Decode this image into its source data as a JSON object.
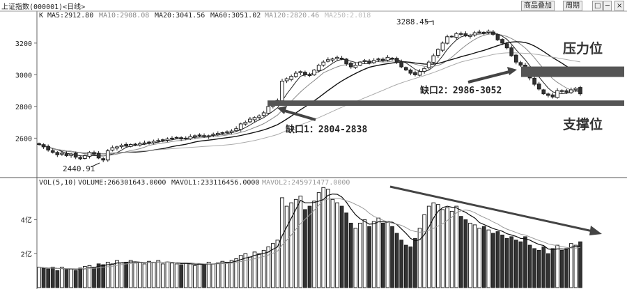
{
  "header": {
    "title": "上证指数(000001)<日线>",
    "k_label": "K",
    "ma5": "MA5:2912.80",
    "ma10": "MA10:2908.08",
    "ma20": "MA20:3041.56",
    "ma60": "MA60:3051.02",
    "ma120": "MA120:2820.46",
    "ma250": "MA250:2.018",
    "btn_overlay": "商品叠加",
    "btn_period": "周期",
    "win_controls": [
      "□",
      "─",
      "×"
    ]
  },
  "vol_header": {
    "vol": "VOL(5,10)",
    "volume": "VOLUME:266301643.0000",
    "mavol1": "MAVOL1:233116456.0000",
    "mavol2": "MAVOL2:245971477.0000"
  },
  "colors": {
    "up": "#ffffff",
    "down": "#333333",
    "gap_band": "#555555",
    "text": "#222222"
  },
  "chart_data": [
    {
      "type": "candlestick",
      "title": "上证指数(000001)<日线>",
      "ylim": [
        2360,
        3340
      ],
      "y_ticks": [
        2600,
        2800,
        3000,
        3200
      ],
      "annotations": {
        "high_label": "3288.45",
        "low_label": "2440.91",
        "gap1": "缺口1：2804-2838",
        "gap2": "缺口2：2986-3052",
        "resistance": "压力位",
        "support": "支撑位"
      },
      "gap_bands": [
        {
          "name": "缺口1",
          "low": 2804,
          "high": 2838
        },
        {
          "name": "缺口2",
          "low": 2986,
          "high": 3052
        }
      ],
      "closes": [
        2560,
        2545,
        2525,
        2510,
        2495,
        2505,
        2490,
        2500,
        2480,
        2470,
        2490,
        2510,
        2500,
        2475,
        2462,
        2520,
        2540,
        2545,
        2555,
        2550,
        2560,
        2562,
        2565,
        2570,
        2575,
        2580,
        2585,
        2590,
        2595,
        2600,
        2605,
        2595,
        2600,
        2610,
        2615,
        2620,
        2610,
        2615,
        2625,
        2630,
        2635,
        2638,
        2645,
        2660,
        2690,
        2700,
        2720,
        2730,
        2740,
        2760,
        2800,
        2820,
        2838,
        2960,
        2975,
        2990,
        3010,
        3020,
        3000,
        2995,
        3030,
        3060,
        3080,
        3095,
        3100,
        3110,
        3100,
        3070,
        3050,
        3060,
        3080,
        3090,
        3075,
        3090,
        3100,
        3090,
        3110,
        3105,
        3080,
        3050,
        3030,
        3010,
        3000,
        3020,
        3040,
        3080,
        3120,
        3160,
        3200,
        3240,
        3240,
        3260,
        3255,
        3245,
        3250,
        3265,
        3270,
        3265,
        3275,
        3255,
        3220,
        3200,
        3170,
        3120,
        3080,
        3060,
        3040,
        2980,
        2940,
        2910,
        2880,
        2870,
        2860,
        2900,
        2895,
        2890,
        2905,
        2915,
        2880
      ]
    },
    {
      "type": "bar",
      "title": "VOL(5,10)",
      "ylabel_ticks": [
        "2亿",
        "4亿"
      ],
      "tick_values": [
        2,
        4
      ],
      "ylim": [
        0,
        6.2
      ],
      "volumes_yi": [
        1.2,
        1.15,
        1.1,
        1.2,
        1.0,
        1.2,
        1.05,
        1.1,
        1.0,
        1.15,
        1.25,
        1.3,
        1.2,
        1.4,
        1.35,
        1.5,
        1.4,
        1.6,
        1.45,
        1.5,
        1.6,
        1.45,
        1.5,
        1.4,
        1.55,
        1.5,
        1.6,
        1.4,
        1.5,
        1.45,
        1.4,
        1.35,
        1.45,
        1.4,
        1.3,
        1.4,
        1.35,
        1.5,
        1.4,
        1.45,
        1.55,
        1.5,
        1.6,
        1.7,
        1.9,
        2.0,
        1.8,
        2.1,
        2.0,
        2.2,
        2.4,
        2.6,
        2.8,
        5.3,
        4.8,
        5.0,
        5.2,
        5.4,
        4.6,
        4.8,
        5.1,
        5.6,
        5.9,
        5.8,
        5.2,
        5.0,
        4.8,
        4.4,
        3.8,
        3.5,
        3.8,
        4.0,
        3.6,
        3.9,
        4.1,
        3.8,
        3.9,
        3.6,
        3.2,
        2.8,
        2.5,
        2.4,
        2.9,
        3.5,
        4.3,
        4.8,
        5.0,
        4.9,
        4.6,
        4.7,
        4.5,
        4.8,
        4.2,
        4.0,
        3.8,
        3.7,
        3.5,
        3.6,
        3.4,
        3.2,
        3.3,
        3.1,
        2.9,
        3.0,
        2.8,
        2.7,
        3.0,
        2.5,
        2.3,
        2.2,
        2.4,
        2.0,
        2.3,
        2.5,
        2.2,
        2.3,
        2.6,
        2.5,
        2.7
      ]
    }
  ]
}
